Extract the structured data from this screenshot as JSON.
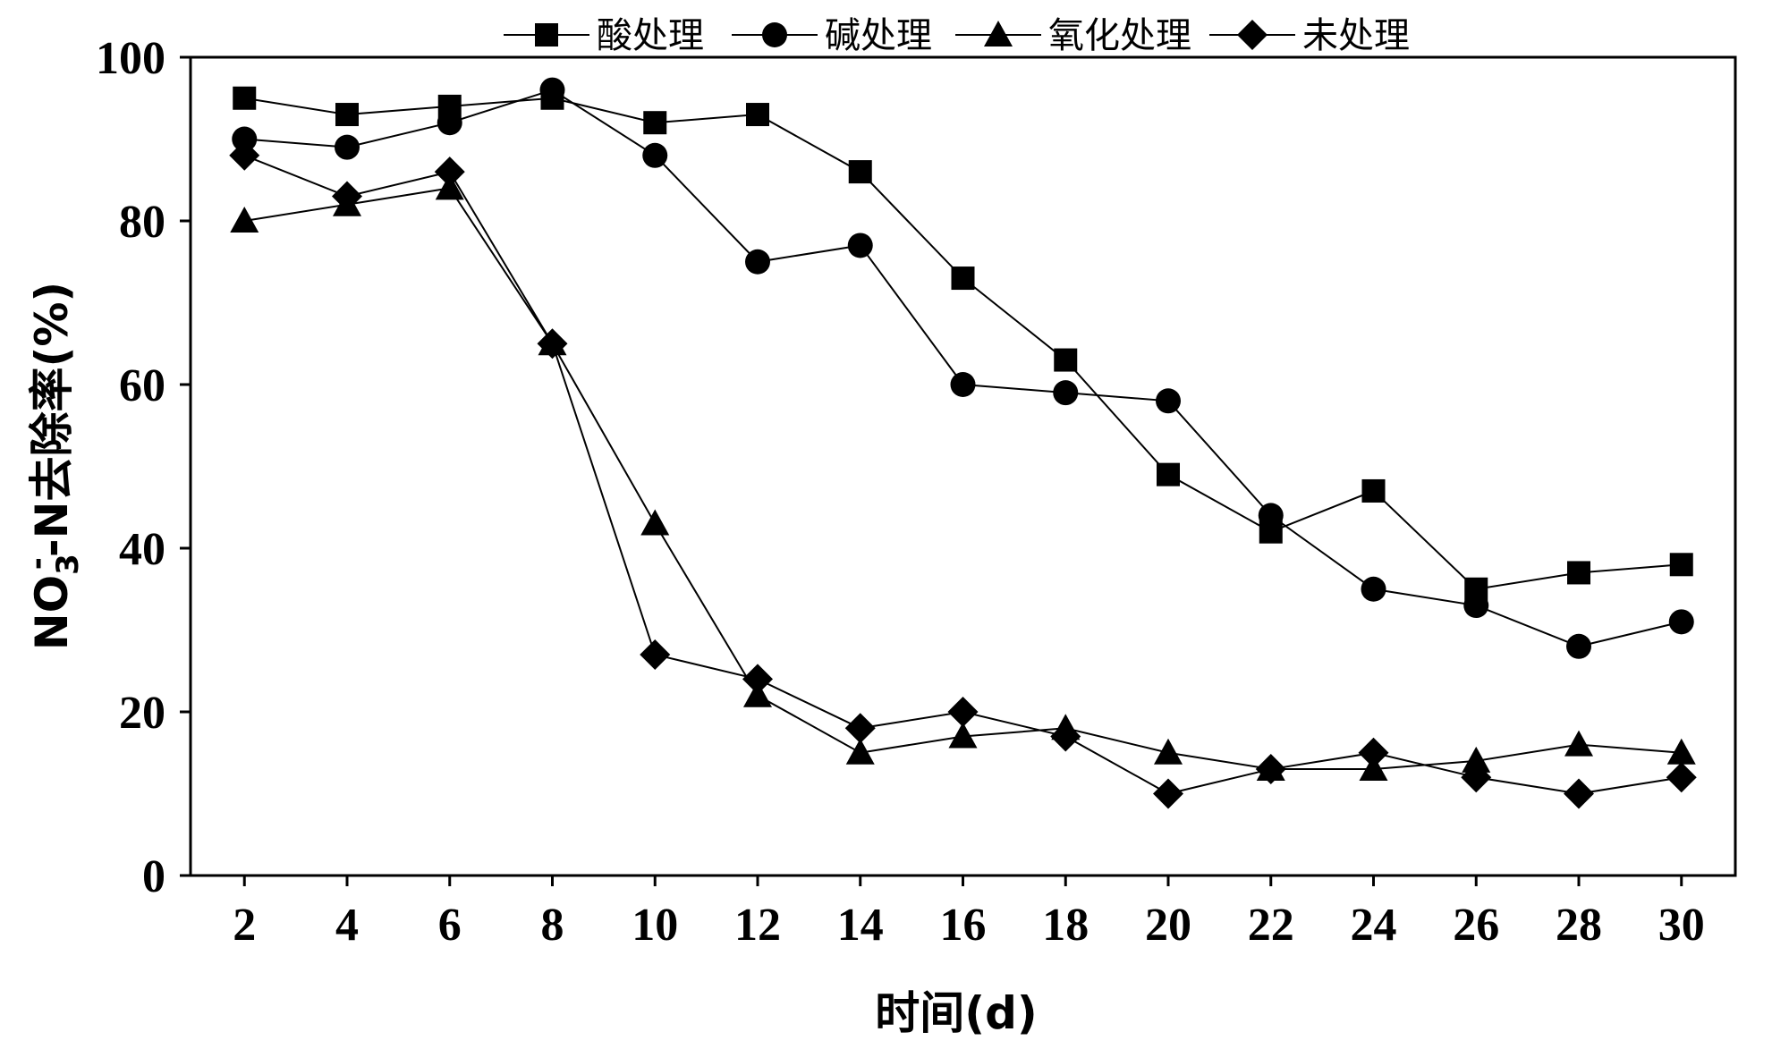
{
  "chart_data": {
    "type": "line",
    "xlabel": "时间(d)",
    "ylabel": {
      "prefix": "NO",
      "sub": "3",
      "sup": "-",
      "suffix": "-N去除率(%)"
    },
    "xlim": [
      0.95,
      31.05
    ],
    "ylim": [
      0,
      100
    ],
    "xticks": [
      2,
      4,
      6,
      8,
      10,
      12,
      14,
      16,
      18,
      20,
      22,
      24,
      26,
      28,
      30
    ],
    "yticks": [
      0,
      20,
      40,
      60,
      80,
      100
    ],
    "grid": false,
    "legend_position": "top",
    "x": [
      2,
      4,
      6,
      8,
      10,
      12,
      14,
      16,
      18,
      20,
      22,
      24,
      26,
      28,
      30
    ],
    "series": [
      {
        "name": "酸处理",
        "marker": "square",
        "values": [
          95,
          93,
          94,
          95,
          92,
          93,
          86,
          73,
          63,
          49,
          42,
          47,
          35,
          37,
          38
        ]
      },
      {
        "name": "碱处理",
        "marker": "circle",
        "values": [
          90,
          89,
          92,
          96,
          88,
          75,
          77,
          60,
          59,
          58,
          44,
          35,
          33,
          28,
          31
        ]
      },
      {
        "name": "氧化处理",
        "marker": "triangle",
        "values": [
          80,
          82,
          84,
          65,
          43,
          22,
          15,
          17,
          18,
          15,
          13,
          13,
          14,
          16,
          15
        ]
      },
      {
        "name": "未处理",
        "marker": "diamond",
        "values": [
          88,
          83,
          86,
          65,
          27,
          24,
          18,
          20,
          17,
          10,
          13,
          15,
          12,
          10,
          12
        ]
      }
    ]
  }
}
